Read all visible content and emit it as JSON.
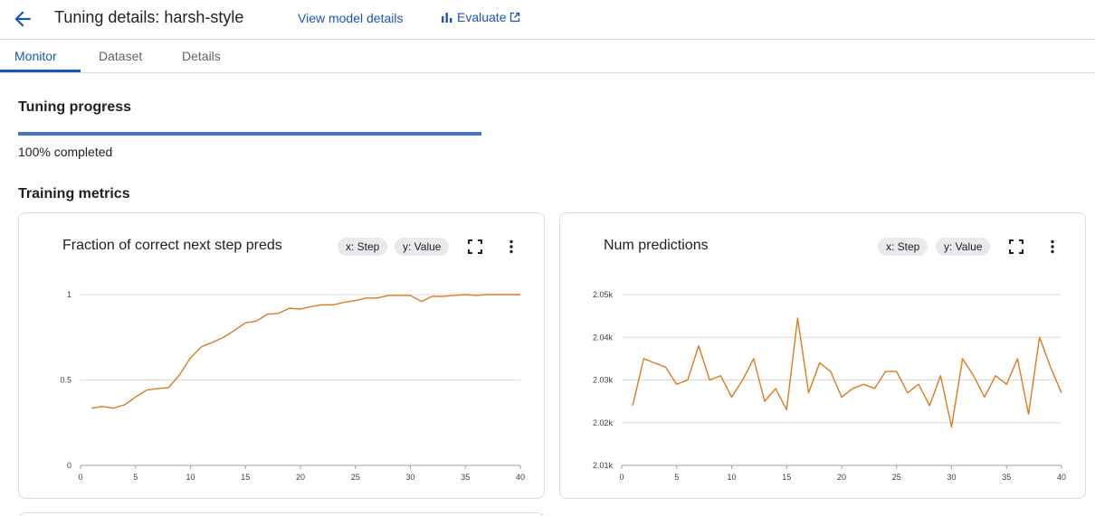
{
  "header": {
    "title": "Tuning details: harsh-style",
    "view_model_label": "View model details",
    "evaluate_label": "Evaluate"
  },
  "tabs": [
    {
      "label": "Monitor",
      "active": true
    },
    {
      "label": "Dataset",
      "active": false
    },
    {
      "label": "Details",
      "active": false
    }
  ],
  "progress": {
    "title": "Tuning progress",
    "percent": 100,
    "label": "100% completed"
  },
  "metrics": {
    "title": "Training metrics"
  },
  "colors": {
    "accent": "#1a56b8",
    "progress": "#4a77b5",
    "series": "#d97c1e"
  },
  "icons": {
    "back": "arrow-back-icon",
    "evaluate": "bar-chart-icon",
    "external": "open-in-new-icon",
    "fullscreen": "fullscreen-icon",
    "more": "more-vert-icon"
  },
  "chart_data": [
    {
      "type": "line",
      "title": "Fraction of correct next step preds",
      "x_chip": "x: Step",
      "y_chip": "y: Value",
      "xlim": [
        0,
        40
      ],
      "ylim": [
        0,
        1
      ],
      "x_ticks": [
        0,
        5,
        10,
        15,
        20,
        25,
        30,
        35,
        40
      ],
      "x_tick_labels": [
        "0",
        "5",
        "10",
        "15",
        "20",
        "25",
        "30",
        "35",
        "40"
      ],
      "y_ticks": [
        0,
        0.5,
        1
      ],
      "y_tick_labels": [
        "0",
        "0.5",
        "1"
      ],
      "grid": true,
      "series": [
        {
          "x": [
            1,
            2,
            3,
            4,
            5,
            6,
            7,
            8,
            9,
            10,
            11,
            12,
            13,
            14,
            15,
            16,
            17,
            18,
            19,
            20,
            21,
            22,
            23,
            24,
            25,
            26,
            27,
            28,
            29,
            30,
            31,
            32,
            33,
            34,
            35,
            36,
            37,
            38,
            39,
            40
          ],
          "values": [
            0.335,
            0.345,
            0.335,
            0.355,
            0.4,
            0.44,
            0.45,
            0.455,
            0.53,
            0.63,
            0.695,
            0.72,
            0.75,
            0.79,
            0.835,
            0.845,
            0.885,
            0.89,
            0.92,
            0.915,
            0.93,
            0.94,
            0.94,
            0.955,
            0.965,
            0.98,
            0.98,
            0.995,
            0.995,
            0.995,
            0.96,
            0.99,
            0.99,
            0.995,
            1.0,
            0.995,
            1.0,
            1.0,
            1.0,
            1.0
          ]
        }
      ]
    },
    {
      "type": "line",
      "title": "Num predictions",
      "x_chip": "x: Step",
      "y_chip": "y: Value",
      "xlim": [
        0,
        40
      ],
      "ylim": [
        2010,
        2050
      ],
      "x_ticks": [
        0,
        5,
        10,
        15,
        20,
        25,
        30,
        35,
        40
      ],
      "x_tick_labels": [
        "0",
        "5",
        "10",
        "15",
        "20",
        "25",
        "30",
        "35",
        "40"
      ],
      "y_ticks": [
        2010,
        2020,
        2030,
        2040,
        2050
      ],
      "y_tick_labels": [
        "2.01k",
        "2.02k",
        "2.03k",
        "2.04k",
        "2.05k"
      ],
      "grid": true,
      "series": [
        {
          "x": [
            1,
            2,
            3,
            4,
            5,
            6,
            7,
            8,
            9,
            10,
            11,
            12,
            13,
            14,
            15,
            16,
            17,
            18,
            19,
            20,
            21,
            22,
            23,
            24,
            25,
            26,
            27,
            28,
            29,
            30,
            31,
            32,
            33,
            34,
            35,
            36,
            37,
            38,
            39,
            40
          ],
          "values": [
            2024,
            2035,
            2034,
            2033,
            2029,
            2030,
            2038,
            2030,
            2031,
            2026,
            2030,
            2035,
            2025,
            2028,
            2023,
            2044.5,
            2027,
            2034,
            2032,
            2026,
            2028,
            2029,
            2028,
            2032,
            2032,
            2027,
            2029,
            2024,
            2031,
            2019,
            2035,
            2031,
            2026,
            2031,
            2029,
            2035,
            2022,
            2040,
            2033,
            2027
          ]
        }
      ]
    }
  ]
}
